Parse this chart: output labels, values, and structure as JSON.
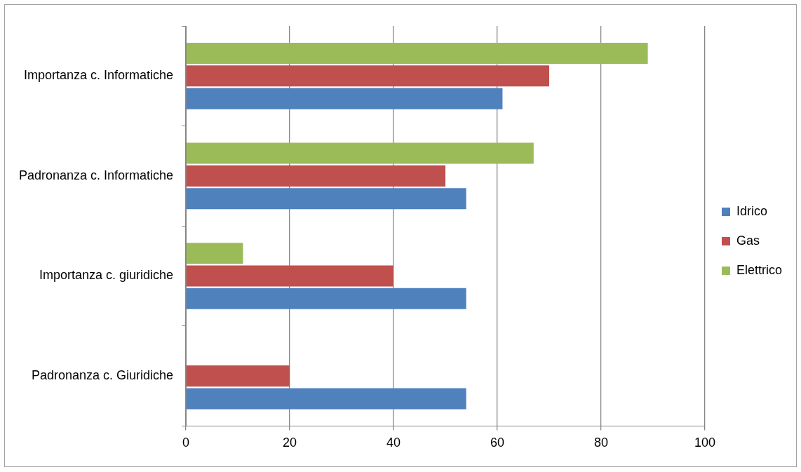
{
  "chart_data": {
    "type": "bar",
    "orientation": "horizontal",
    "categories": [
      "Importanza c. Informatiche",
      "Padronanza c. Informatiche",
      "Importanza c. giuridiche",
      "Padronanza c. Giuridiche"
    ],
    "series": [
      {
        "name": "Elettrico",
        "color": "#9bbb59",
        "values": [
          89,
          67,
          11,
          0
        ]
      },
      {
        "name": "Gas",
        "color": "#c0504d",
        "values": [
          70,
          50,
          40,
          20
        ]
      },
      {
        "name": "Idrico",
        "color": "#4f81bd",
        "values": [
          61,
          54,
          54,
          54
        ]
      }
    ],
    "xlim": [
      0,
      100
    ],
    "xticks": [
      0,
      20,
      40,
      60,
      80,
      100
    ],
    "grid": "x",
    "legend": "right"
  }
}
